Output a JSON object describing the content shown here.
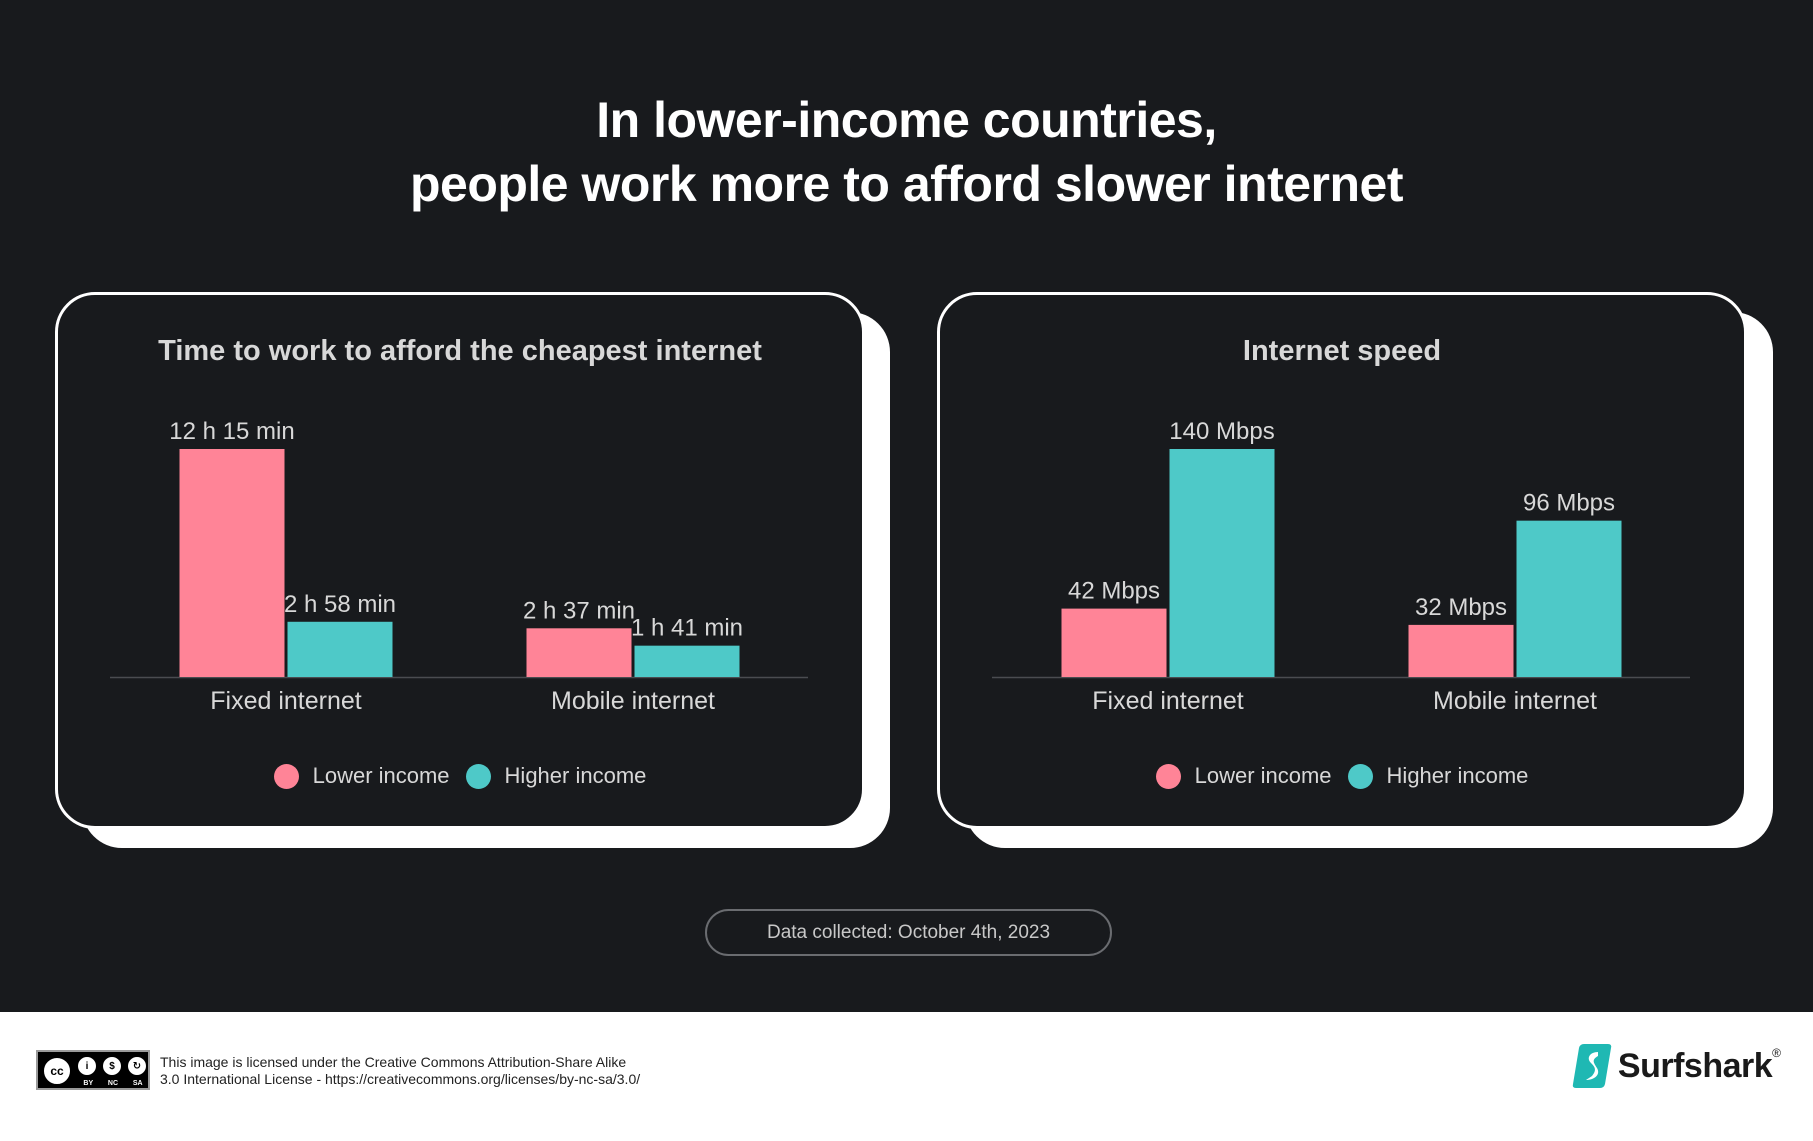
{
  "title": {
    "line1": "In lower-income countries,",
    "line2": "people work more to afford slower internet"
  },
  "colors": {
    "lower_income": "#ff8497",
    "higher_income": "#4ec9c8",
    "background": "#181a1d",
    "card_border": "#ffffff"
  },
  "legend": {
    "lower_label": "Lower income",
    "higher_label": "Higher income"
  },
  "chart_data": [
    {
      "type": "bar",
      "title": "Time to work to afford the cheapest internet",
      "categories": [
        "Fixed internet",
        "Mobile internet"
      ],
      "unit": "minutes",
      "ylim": [
        0,
        735
      ],
      "series": [
        {
          "name": "Lower income",
          "values": [
            735,
            157
          ],
          "labels": [
            "12 h 15 min",
            "2 h 37 min"
          ]
        },
        {
          "name": "Higher income",
          "values": [
            178,
            101
          ],
          "labels": [
            "2 h 58 min",
            "1 h 41 min"
          ]
        }
      ],
      "legend_position": "bottom"
    },
    {
      "type": "bar",
      "title": "Internet speed",
      "categories": [
        "Fixed internet",
        "Mobile internet"
      ],
      "unit": "Mbps",
      "ylim": [
        0,
        140
      ],
      "series": [
        {
          "name": "Lower income",
          "values": [
            42,
            32
          ],
          "labels": [
            "42 Mbps",
            "32 Mbps"
          ]
        },
        {
          "name": "Higher income",
          "values": [
            140,
            96
          ],
          "labels": [
            "140 Mbps",
            "96 Mbps"
          ]
        }
      ],
      "legend_position": "bottom"
    }
  ],
  "date_note": "Data collected: October 4th, 2023",
  "footer": {
    "cc_tags": [
      "BY",
      "NC",
      "SA"
    ],
    "license_line1": "This image is licensed under the Creative Commons Attribution-Share Alike",
    "license_line2": "3.0 International License - https://creativecommons.org/licenses/by-nc-sa/3.0/",
    "brand": "Surfshark"
  }
}
